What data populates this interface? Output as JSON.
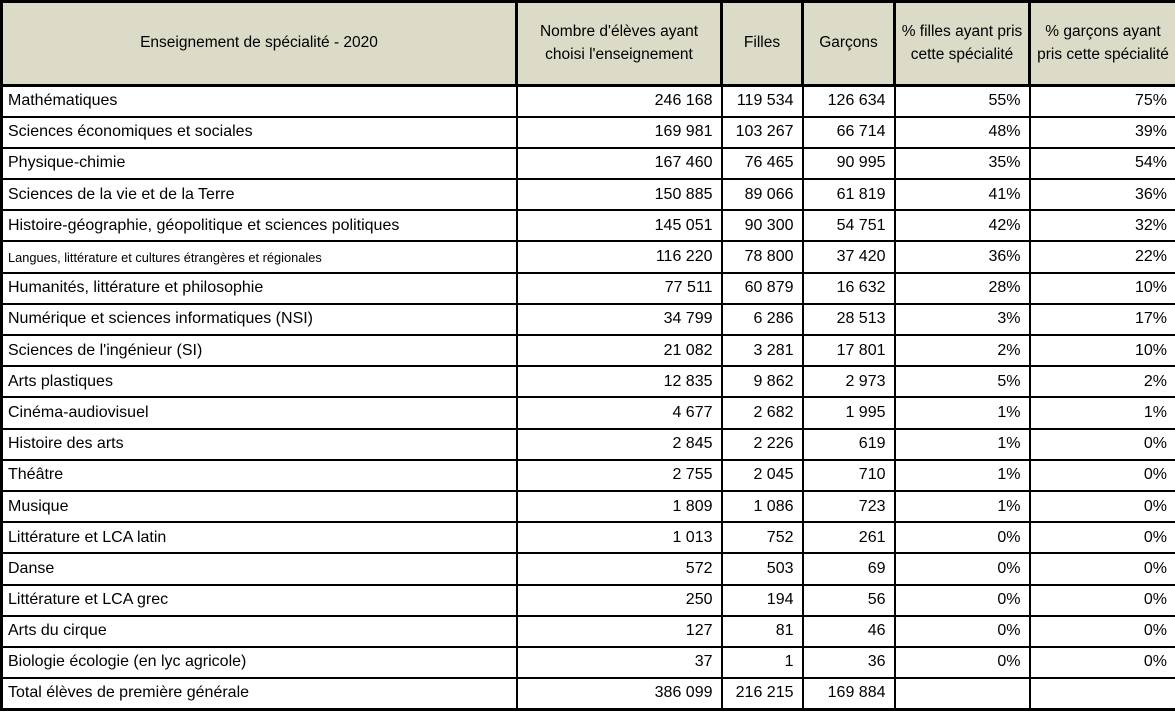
{
  "colors": {
    "header_bg": "#dbdbc7",
    "border": "#000000",
    "row_bg": "#ffffff"
  },
  "table": {
    "header": [
      "Enseignement de spécialité - 2020",
      "Nombre d'élèves ayant choisi l'enseignement",
      "Filles",
      "Garçons",
      "% filles ayant pris cette spécialité",
      "% garçons ayant pris cette spécialité"
    ],
    "rows": [
      {
        "label": "Mathématiques",
        "cells": [
          "246 168",
          "119 534",
          "126 634",
          "55%",
          "75%"
        ]
      },
      {
        "label": "Sciences économiques et sociales",
        "cells": [
          "169 981",
          "103 267",
          "66 714",
          "48%",
          "39%"
        ]
      },
      {
        "label": "Physique-chimie",
        "cells": [
          "167 460",
          "76 465",
          "90 995",
          "35%",
          "54%"
        ]
      },
      {
        "label": "Sciences de la vie et de la Terre",
        "cells": [
          "150 885",
          "89 066",
          "61 819",
          "41%",
          "36%"
        ]
      },
      {
        "label": "Histoire-géographie, géopolitique et sciences politiques",
        "cells": [
          "145 051",
          "90 300",
          "54 751",
          "42%",
          "32%"
        ]
      },
      {
        "label": "Langues, littérature et cultures étrangères et régionales",
        "shrink": true,
        "cells": [
          "116 220",
          "78 800",
          "37 420",
          "36%",
          "22%"
        ]
      },
      {
        "label": "Humanités, littérature et philosophie",
        "cells": [
          "77 511",
          "60 879",
          "16 632",
          "28%",
          "10%"
        ]
      },
      {
        "label": "Numérique et sciences informatiques (NSI)",
        "cells": [
          "34 799",
          "6 286",
          "28 513",
          "3%",
          "17%"
        ]
      },
      {
        "label": "Sciences de l'ingénieur (SI)",
        "cells": [
          "21 082",
          "3 281",
          "17 801",
          "2%",
          "10%"
        ]
      },
      {
        "label": "Arts plastiques",
        "cells": [
          "12 835",
          "9 862",
          "2 973",
          "5%",
          "2%"
        ]
      },
      {
        "label": "Cinéma-audiovisuel",
        "cells": [
          "4 677",
          "2 682",
          "1 995",
          "1%",
          "1%"
        ]
      },
      {
        "label": "Histoire des arts",
        "cells": [
          "2 845",
          "2 226",
          "619",
          "1%",
          "0%"
        ]
      },
      {
        "label": "Théâtre",
        "cells": [
          "2 755",
          "2 045",
          "710",
          "1%",
          "0%"
        ]
      },
      {
        "label": "Musique",
        "cells": [
          "1 809",
          "1 086",
          "723",
          "1%",
          "0%"
        ]
      },
      {
        "label": "Littérature et LCA latin",
        "cells": [
          "1 013",
          "752",
          "261",
          "0%",
          "0%"
        ]
      },
      {
        "label": "Danse",
        "cells": [
          "572",
          "503",
          "69",
          "0%",
          "0%"
        ]
      },
      {
        "label": "Littérature et LCA grec",
        "cells": [
          "250",
          "194",
          "56",
          "0%",
          "0%"
        ]
      },
      {
        "label": "Arts du cirque",
        "cells": [
          "127",
          "81",
          "46",
          "0%",
          "0%"
        ]
      },
      {
        "label": "Biologie écologie (en lyc agricole)",
        "cells": [
          "37",
          "1",
          "36",
          "0%",
          "0%"
        ]
      },
      {
        "label": "Total élèves de première générale",
        "is_total": true,
        "cells": [
          "386 099",
          "216 215",
          "169 884",
          "",
          ""
        ]
      }
    ]
  },
  "chart_data": {
    "type": "table",
    "title": "Enseignement de spécialité - 2020",
    "columns": [
      "Enseignement de spécialité - 2020",
      "Nombre d'élèves ayant choisi l'enseignement",
      "Filles",
      "Garçons",
      "% filles ayant pris cette spécialité",
      "% garçons ayant pris cette spécialité"
    ],
    "rows": [
      [
        "Mathématiques",
        246168,
        119534,
        126634,
        "55%",
        "75%"
      ],
      [
        "Sciences économiques et sociales",
        169981,
        103267,
        66714,
        "48%",
        "39%"
      ],
      [
        "Physique-chimie",
        167460,
        76465,
        90995,
        "35%",
        "54%"
      ],
      [
        "Sciences de la vie et de la Terre",
        150885,
        89066,
        61819,
        "41%",
        "36%"
      ],
      [
        "Histoire-géographie, géopolitique et sciences politiques",
        145051,
        90300,
        54751,
        "42%",
        "32%"
      ],
      [
        "Langues, littérature et cultures étrangères et régionales",
        116220,
        78800,
        37420,
        "36%",
        "22%"
      ],
      [
        "Humanités, littérature et philosophie",
        77511,
        60879,
        16632,
        "28%",
        "10%"
      ],
      [
        "Numérique et sciences informatiques (NSI)",
        34799,
        6286,
        28513,
        "3%",
        "17%"
      ],
      [
        "Sciences de l'ingénieur (SI)",
        21082,
        3281,
        17801,
        "2%",
        "10%"
      ],
      [
        "Arts plastiques",
        12835,
        9862,
        2973,
        "5%",
        "2%"
      ],
      [
        "Cinéma-audiovisuel",
        4677,
        2682,
        1995,
        "1%",
        "1%"
      ],
      [
        "Histoire des arts",
        2845,
        2226,
        619,
        "1%",
        "0%"
      ],
      [
        "Théâtre",
        2755,
        2045,
        710,
        "1%",
        "0%"
      ],
      [
        "Musique",
        1809,
        1086,
        723,
        "1%",
        "0%"
      ],
      [
        "Littérature et LCA latin",
        1013,
        752,
        261,
        "0%",
        "0%"
      ],
      [
        "Danse",
        572,
        503,
        69,
        "0%",
        "0%"
      ],
      [
        "Littérature et LCA grec",
        250,
        194,
        56,
        "0%",
        "0%"
      ],
      [
        "Arts du cirque",
        127,
        81,
        46,
        "0%",
        "0%"
      ],
      [
        "Biologie écologie (en lyc agricole)",
        37,
        1,
        36,
        "0%",
        "0%"
      ],
      [
        "Total élèves de première générale",
        386099,
        216215,
        169884,
        "",
        ""
      ]
    ]
  }
}
